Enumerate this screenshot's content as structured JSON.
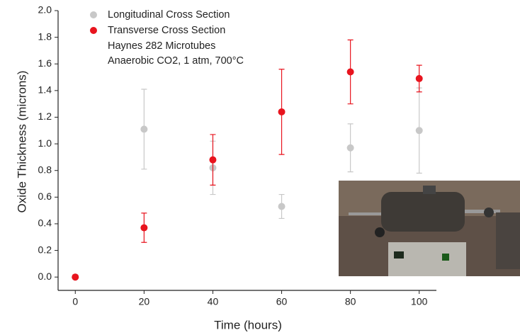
{
  "chart_data": {
    "type": "scatter",
    "x_label": "Time (hours)",
    "y_label": "Oxide Thickness (microns)",
    "x": [
      0,
      20,
      40,
      60,
      80,
      100
    ],
    "series": [
      {
        "name": "Longitudinal Cross Section",
        "color": "#c8c8c8",
        "values": [
          0.0,
          1.11,
          0.82,
          0.53,
          0.97,
          1.1
        ],
        "errors": [
          0.0,
          0.3,
          0.2,
          0.09,
          0.18,
          0.32
        ]
      },
      {
        "name": "Transverse Cross Section",
        "color": "#e8141e",
        "values": [
          0.0,
          0.37,
          0.88,
          1.24,
          1.54,
          1.49
        ],
        "errors": [
          0.0,
          0.11,
          0.19,
          0.32,
          0.24,
          0.1
        ]
      }
    ],
    "annotations": [
      "Haynes 282 Microtubes",
      "Anaerobic CO2, 1 atm, 700°C"
    ],
    "xlim": [
      -5,
      105
    ],
    "ylim": [
      -0.1,
      2.0
    ],
    "xticks": [
      0,
      20,
      40,
      60,
      80,
      100
    ],
    "yticks": [
      {
        "value": 0,
        "label": "0.0"
      },
      0.2,
      0.4,
      0.6,
      0.8,
      {
        "value": 1,
        "label": "1.0"
      },
      1.2,
      1.4,
      1.6,
      1.8,
      {
        "value": 2,
        "label": "2.0"
      }
    ],
    "legend": "upper left"
  }
}
